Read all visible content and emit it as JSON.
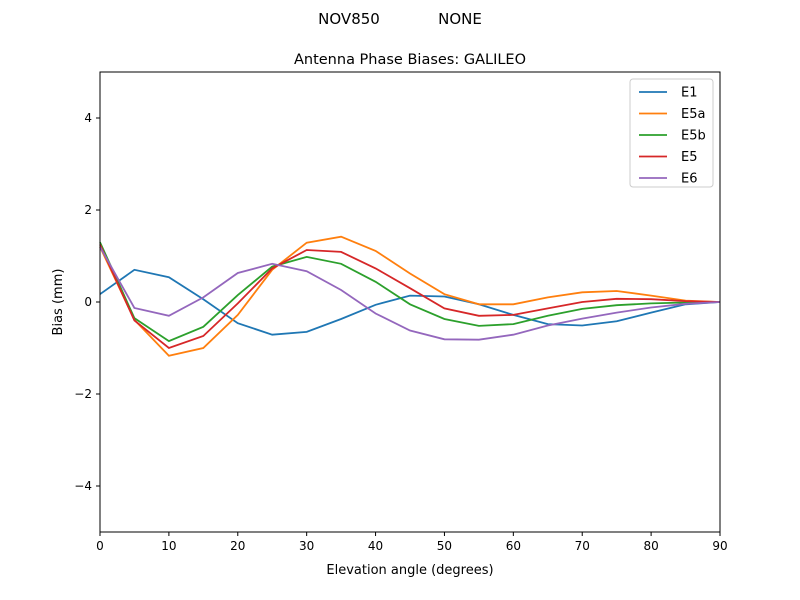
{
  "chart_data": {
    "type": "line",
    "suptitle_left": "NOV850",
    "suptitle_right": "NONE",
    "title": "Antenna Phase Biases: GALILEO",
    "xlabel": "Elevation angle (degrees)",
    "ylabel": "Bias (mm)",
    "xlim": [
      0,
      90
    ],
    "ylim": [
      -5,
      5
    ],
    "xticks": [
      0,
      10,
      20,
      30,
      40,
      50,
      60,
      70,
      80,
      90
    ],
    "yticks": [
      -4,
      -2,
      0,
      2,
      4
    ],
    "ytick_labels": [
      "−4",
      "−2",
      "0",
      "2",
      "4"
    ],
    "grid": false,
    "legend_position": "top-right",
    "x": [
      0,
      5,
      10,
      15,
      20,
      25,
      30,
      35,
      40,
      45,
      50,
      55,
      60,
      65,
      70,
      75,
      80,
      85,
      90
    ],
    "series": [
      {
        "name": "E1",
        "color": "#1f77b4",
        "values": [
          0.17,
          0.7,
          0.54,
          0.06,
          -0.46,
          -0.71,
          -0.65,
          -0.37,
          -0.06,
          0.14,
          0.12,
          -0.05,
          -0.28,
          -0.48,
          -0.51,
          -0.42,
          -0.23,
          -0.05,
          0
        ]
      },
      {
        "name": "E5a",
        "color": "#ff7f0e",
        "values": [
          1.2,
          -0.39,
          -1.17,
          -1.0,
          -0.28,
          0.7,
          1.29,
          1.42,
          1.11,
          0.62,
          0.17,
          -0.05,
          -0.05,
          0.1,
          0.21,
          0.24,
          0.14,
          0.03,
          0
        ]
      },
      {
        "name": "E5b",
        "color": "#2ca02c",
        "values": [
          1.3,
          -0.35,
          -0.85,
          -0.54,
          0.15,
          0.77,
          0.98,
          0.83,
          0.44,
          -0.05,
          -0.37,
          -0.52,
          -0.48,
          -0.3,
          -0.15,
          -0.07,
          -0.03,
          -0.01,
          0
        ]
      },
      {
        "name": "E5",
        "color": "#d62728",
        "values": [
          1.25,
          -0.4,
          -1.0,
          -0.74,
          -0.03,
          0.73,
          1.13,
          1.09,
          0.73,
          0.3,
          -0.14,
          -0.3,
          -0.28,
          -0.14,
          0.0,
          0.07,
          0.06,
          0.02,
          0
        ]
      },
      {
        "name": "E6",
        "color": "#9467bd",
        "values": [
          1.2,
          -0.13,
          -0.3,
          0.1,
          0.63,
          0.83,
          0.67,
          0.26,
          -0.25,
          -0.62,
          -0.81,
          -0.82,
          -0.71,
          -0.51,
          -0.36,
          -0.23,
          -0.12,
          -0.04,
          0
        ]
      }
    ]
  }
}
